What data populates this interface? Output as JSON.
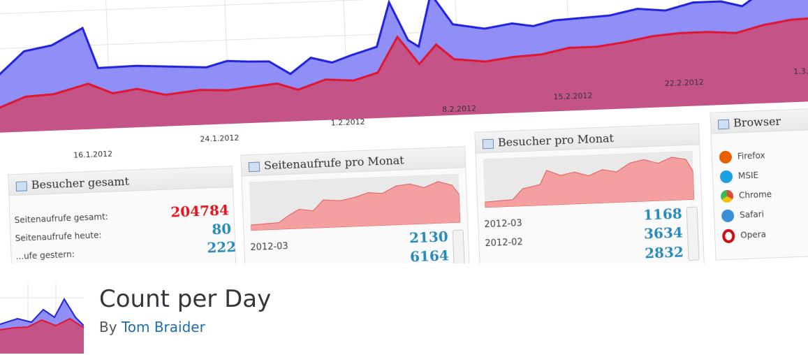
{
  "banner": {
    "x_ticks": [
      "16.1.2012",
      "24.1.2012",
      "1.2.2012",
      "8.2.2012",
      "15.2.2012",
      "22.2.2012",
      "1.3."
    ],
    "panels": {
      "total": {
        "title": "Besucher gesamt",
        "rows": [
          {
            "label": "Seitenaufrufe gesamt:",
            "value": "204784",
            "color": "#e8141c"
          },
          {
            "label": "Seitenaufrufe heute:",
            "value": "80",
            "color": "#2a8ab8"
          },
          {
            "label": "...ufe gestern:",
            "value": "222",
            "color": "#2a8ab8"
          }
        ]
      },
      "pageviews": {
        "title": "Seitenaufrufe pro Monat",
        "rows": [
          {
            "label": "2012-03",
            "value": "2130"
          },
          {
            "label": "",
            "value": "6164"
          }
        ]
      },
      "visitors": {
        "title": "Besucher pro Monat",
        "rows": [
          {
            "label": "2012-03",
            "value": "1168"
          },
          {
            "label": "2012-02",
            "value": "3634"
          },
          {
            "label": "",
            "value": "2832"
          }
        ]
      },
      "browser": {
        "title": "Browser",
        "items": [
          {
            "label": "Firefox",
            "icon": "firefox-icon",
            "color": "#e66000"
          },
          {
            "label": "MSIE",
            "icon": "msie-icon",
            "color": "#1ea1e0"
          },
          {
            "label": "Chrome",
            "icon": "chrome-icon",
            "color": "#dd4b39"
          },
          {
            "label": "Safari",
            "icon": "safari-icon",
            "color": "#3b8fd6"
          },
          {
            "label": "Opera",
            "icon": "opera-icon",
            "color": "#cc0f16"
          }
        ]
      }
    }
  },
  "plugin": {
    "title": "Count per Day",
    "by": "By",
    "author": "Tom Braider",
    "colors": {
      "visitors": "#7f7ff5",
      "pageviews": "#c24a86",
      "link": "#1e6ea7"
    }
  }
}
